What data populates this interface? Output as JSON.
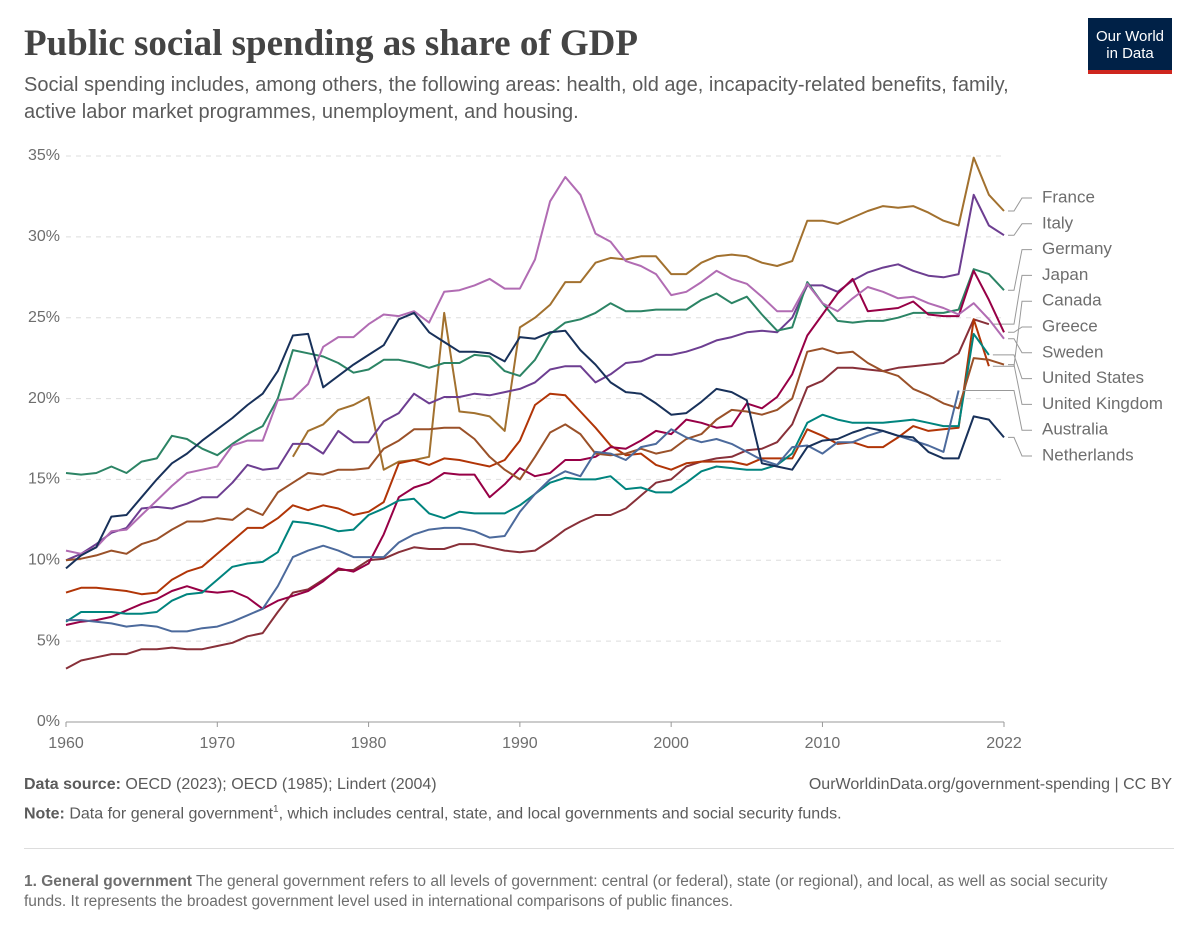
{
  "chart_data": {
    "type": "line",
    "title": "Public social spending as share of GDP",
    "subtitle": "Social spending includes, among others, the following areas: health, old age, incapacity-related benefits, family, active labor market programmes, unemployment, and housing.",
    "logo": [
      "Our World",
      "in Data"
    ],
    "source_label": "Data source:",
    "source_text": "OECD (2023); OECD (1985); Lindert (2004)",
    "url": "OurWorldinData.org/government-spending | CC BY",
    "note_label": "Note:",
    "note_text": "Data for general government",
    "note_sup": "1",
    "note_rest": ", which includes central, state, and local governments and social security funds.",
    "footnote_label": "1. General government",
    "footnote_text": "The general government refers to all levels of government: central (or federal), state (or regional), and local, as well as social security funds. It represents the broadest government level used in international comparisons of public finances.",
    "x": [
      1960,
      1961,
      1962,
      1963,
      1964,
      1965,
      1966,
      1967,
      1968,
      1969,
      1970,
      1971,
      1972,
      1973,
      1974,
      1975,
      1976,
      1977,
      1978,
      1979,
      1980,
      1981,
      1982,
      1983,
      1984,
      1985,
      1986,
      1987,
      1988,
      1989,
      1990,
      1991,
      1992,
      1993,
      1994,
      1995,
      1996,
      1997,
      1998,
      1999,
      2000,
      2001,
      2002,
      2003,
      2004,
      2005,
      2006,
      2007,
      2008,
      2009,
      2010,
      2011,
      2012,
      2013,
      2014,
      2015,
      2016,
      2017,
      2018,
      2019,
      2020,
      2021,
      2022
    ],
    "xlim": [
      1960,
      2022
    ],
    "xticks": [
      1960,
      1970,
      1980,
      1990,
      2000,
      2010,
      2022
    ],
    "ylim": [
      0,
      35
    ],
    "yticks": [
      {
        "value": 0,
        "label": "0%"
      },
      {
        "value": 5,
        "label": "5%"
      },
      {
        "value": 10,
        "label": "10%"
      },
      {
        "value": 15,
        "label": "15%"
      },
      {
        "value": 20,
        "label": "20%"
      },
      {
        "value": 25,
        "label": "25%"
      },
      {
        "value": 30,
        "label": "30%"
      },
      {
        "value": 35,
        "label": "35%"
      }
    ],
    "grid": true,
    "series": [
      {
        "name": "France",
        "color": "#a2712f",
        "values": [
          null,
          null,
          null,
          null,
          null,
          null,
          null,
          null,
          null,
          null,
          null,
          null,
          null,
          null,
          null,
          16.4,
          18.0,
          18.4,
          19.3,
          19.6,
          20.1,
          15.6,
          16.1,
          16.2,
          16.4,
          25.3,
          19.2,
          19.1,
          18.9,
          18.0,
          24.4,
          25.0,
          25.8,
          27.2,
          27.2,
          28.4,
          28.7,
          28.6,
          28.8,
          28.8,
          27.7,
          27.7,
          28.4,
          28.8,
          28.9,
          28.8,
          28.4,
          28.2,
          28.5,
          31.0,
          31.0,
          30.8,
          31.2,
          31.6,
          31.9,
          31.8,
          31.9,
          31.5,
          31.0,
          30.7,
          34.9,
          32.6,
          31.6
        ]
      },
      {
        "name": "Italy",
        "color": "#6d3e91",
        "values": [
          10.0,
          10.4,
          11.0,
          11.7,
          12.0,
          13.2,
          13.3,
          13.2,
          13.5,
          13.9,
          13.9,
          14.8,
          15.9,
          15.6,
          15.7,
          17.2,
          17.2,
          16.6,
          18.0,
          17.3,
          17.3,
          18.6,
          19.1,
          20.3,
          19.7,
          20.1,
          20.1,
          20.3,
          20.2,
          20.4,
          20.6,
          21.0,
          21.8,
          22.0,
          22.0,
          21.0,
          21.5,
          22.2,
          22.3,
          22.7,
          22.7,
          22.9,
          23.2,
          23.6,
          23.8,
          24.1,
          24.2,
          24.1,
          25.0,
          27.0,
          27.0,
          26.6,
          27.3,
          27.8,
          28.1,
          28.3,
          27.9,
          27.6,
          27.5,
          27.7,
          32.6,
          30.7,
          30.1
        ]
      },
      {
        "name": "Germany",
        "color": "#2c8465",
        "values": [
          15.4,
          15.3,
          15.4,
          15.8,
          15.4,
          16.1,
          16.3,
          17.7,
          17.5,
          16.9,
          16.5,
          17.2,
          17.8,
          18.3,
          20.0,
          23.0,
          22.8,
          22.6,
          22.2,
          21.6,
          21.8,
          22.4,
          22.4,
          22.2,
          21.9,
          22.2,
          22.2,
          22.7,
          22.6,
          21.7,
          21.4,
          22.4,
          24.0,
          24.7,
          24.9,
          25.3,
          25.9,
          25.4,
          25.4,
          25.5,
          25.5,
          25.5,
          26.1,
          26.5,
          25.9,
          26.3,
          25.2,
          24.2,
          24.4,
          27.2,
          25.9,
          24.8,
          24.7,
          24.8,
          24.8,
          25.0,
          25.3,
          25.3,
          25.3,
          25.5,
          28.0,
          27.7,
          26.7
        ]
      },
      {
        "name": "Japan",
        "color": "#883039",
        "values": [
          3.3,
          3.8,
          4.0,
          4.2,
          4.2,
          4.5,
          4.5,
          4.6,
          4.5,
          4.5,
          4.7,
          4.9,
          5.3,
          5.5,
          6.8,
          8.0,
          8.2,
          8.8,
          9.4,
          9.4,
          10.0,
          10.1,
          10.5,
          10.8,
          10.7,
          10.7,
          11.0,
          11.0,
          10.8,
          10.6,
          10.5,
          10.6,
          11.2,
          11.9,
          12.4,
          12.8,
          12.8,
          13.2,
          14.0,
          14.8,
          15.0,
          15.8,
          16.1,
          16.3,
          16.4,
          16.8,
          16.9,
          17.3,
          18.4,
          20.7,
          21.1,
          21.9,
          21.9,
          21.8,
          21.7,
          21.9,
          22.0,
          22.1,
          22.2,
          22.8,
          24.9,
          24.6,
          null
        ]
      },
      {
        "name": "Canada",
        "color": "#b13507",
        "values": [
          8.0,
          8.3,
          8.3,
          8.2,
          8.1,
          7.9,
          8.0,
          8.8,
          9.3,
          9.6,
          10.4,
          11.2,
          12.0,
          12.0,
          12.6,
          13.4,
          13.1,
          13.4,
          13.2,
          12.8,
          13.0,
          13.6,
          16.0,
          16.2,
          15.9,
          16.3,
          16.2,
          16.0,
          15.8,
          16.2,
          17.4,
          19.6,
          20.3,
          20.2,
          19.2,
          18.2,
          17.1,
          16.5,
          16.6,
          15.9,
          15.6,
          16.0,
          16.1,
          16.1,
          16.1,
          15.9,
          16.3,
          16.3,
          16.3,
          18.1,
          17.7,
          17.2,
          17.3,
          17.0,
          17.0,
          17.6,
          18.3,
          18.0,
          18.1,
          18.2,
          24.9,
          22.0,
          null
        ]
      },
      {
        "name": "Greece",
        "color": "#970046",
        "values": [
          6.0,
          6.2,
          6.3,
          6.5,
          6.9,
          7.3,
          7.6,
          8.1,
          8.4,
          8.1,
          8.0,
          8.1,
          7.7,
          7.0,
          7.5,
          7.8,
          8.1,
          8.7,
          9.5,
          9.3,
          9.8,
          11.6,
          13.9,
          14.5,
          14.8,
          15.4,
          15.3,
          15.3,
          13.9,
          14.7,
          15.7,
          15.2,
          15.4,
          16.2,
          16.2,
          16.4,
          17.0,
          16.9,
          17.4,
          18.0,
          17.8,
          18.7,
          18.5,
          18.2,
          18.3,
          19.7,
          19.4,
          20.1,
          21.5,
          23.9,
          25.2,
          26.5,
          27.4,
          25.4,
          25.5,
          25.6,
          26.0,
          25.2,
          25.1,
          25.1,
          27.9,
          26.1,
          24.1
        ]
      },
      {
        "name": "Sweden",
        "color": "#b16cb3",
        "values": [
          10.6,
          10.4,
          10.8,
          11.8,
          11.9,
          12.8,
          13.7,
          14.6,
          15.4,
          15.6,
          15.8,
          17.1,
          17.4,
          17.4,
          19.9,
          20.0,
          20.9,
          23.2,
          23.8,
          23.8,
          24.6,
          25.2,
          25.1,
          25.4,
          24.7,
          26.6,
          26.7,
          27.0,
          27.4,
          26.8,
          26.8,
          28.6,
          32.2,
          33.7,
          32.6,
          30.2,
          29.7,
          28.5,
          28.2,
          27.7,
          26.4,
          26.6,
          27.2,
          27.9,
          27.4,
          27.1,
          26.3,
          25.4,
          25.4,
          27.1,
          25.9,
          25.4,
          26.2,
          26.9,
          26.6,
          26.2,
          26.3,
          25.9,
          25.6,
          25.2,
          25.9,
          24.9,
          23.7
        ]
      },
      {
        "name": "United States",
        "color": "#00847e",
        "values": [
          6.2,
          6.8,
          6.8,
          6.8,
          6.7,
          6.7,
          6.8,
          7.5,
          7.9,
          8.0,
          8.8,
          9.6,
          9.8,
          9.9,
          10.5,
          12.4,
          12.3,
          12.1,
          11.8,
          11.9,
          12.8,
          13.2,
          13.7,
          13.8,
          12.9,
          12.6,
          13.0,
          12.9,
          12.9,
          12.9,
          13.4,
          14.1,
          14.8,
          15.1,
          15.0,
          15.0,
          15.2,
          14.4,
          14.5,
          14.2,
          14.2,
          14.8,
          15.5,
          15.8,
          15.7,
          15.6,
          15.6,
          15.9,
          16.6,
          18.5,
          19.0,
          18.7,
          18.5,
          18.5,
          18.5,
          18.6,
          18.7,
          18.5,
          18.3,
          18.3,
          24.0,
          22.7,
          null
        ]
      },
      {
        "name": "United Kingdom",
        "color": "#9a5129",
        "values": [
          10.0,
          10.1,
          10.3,
          10.6,
          10.4,
          11.0,
          11.3,
          11.9,
          12.4,
          12.4,
          12.6,
          12.5,
          13.2,
          12.8,
          14.2,
          14.8,
          15.4,
          15.3,
          15.6,
          15.6,
          15.7,
          16.9,
          17.4,
          18.1,
          18.1,
          18.2,
          18.2,
          17.5,
          16.4,
          15.6,
          15.0,
          16.4,
          17.9,
          18.4,
          17.8,
          16.6,
          16.5,
          16.6,
          16.9,
          16.6,
          16.8,
          17.5,
          17.8,
          18.7,
          19.3,
          19.2,
          19.0,
          19.3,
          20.0,
          22.9,
          23.1,
          22.8,
          22.9,
          22.2,
          21.7,
          21.4,
          20.6,
          20.2,
          19.7,
          19.4,
          22.5,
          22.4,
          22.1
        ]
      },
      {
        "name": "Australia",
        "color": "#4c6a9c",
        "values": [
          6.3,
          6.3,
          6.2,
          6.1,
          5.9,
          6.0,
          5.9,
          5.6,
          5.6,
          5.8,
          5.9,
          6.2,
          6.6,
          7.0,
          8.4,
          10.2,
          10.6,
          10.9,
          10.6,
          10.2,
          10.2,
          10.2,
          11.1,
          11.6,
          11.9,
          12.0,
          12.0,
          11.8,
          11.4,
          11.5,
          13.0,
          14.1,
          15.0,
          15.5,
          15.2,
          16.7,
          16.6,
          16.2,
          17.0,
          17.2,
          18.1,
          17.6,
          17.3,
          17.5,
          17.2,
          16.7,
          16.2,
          15.9,
          17.0,
          17.1,
          16.6,
          17.3,
          17.3,
          17.7,
          18.0,
          17.7,
          17.4,
          17.1,
          16.7,
          20.5,
          null,
          null,
          null
        ]
      },
      {
        "name": "Netherlands",
        "color": "#18315a",
        "values": [
          9.5,
          10.3,
          10.8,
          12.7,
          12.8,
          13.9,
          15.0,
          16.0,
          16.6,
          17.4,
          18.1,
          18.8,
          19.6,
          20.3,
          21.7,
          23.9,
          24.0,
          20.7,
          21.4,
          22.1,
          22.7,
          23.3,
          24.9,
          25.3,
          24.1,
          23.5,
          22.9,
          22.9,
          22.8,
          22.3,
          23.8,
          23.7,
          24.1,
          24.2,
          23.0,
          22.1,
          21.0,
          20.4,
          20.3,
          19.7,
          19.0,
          19.1,
          19.8,
          20.6,
          20.4,
          19.9,
          16.0,
          15.8,
          15.6,
          17.0,
          17.4,
          17.5,
          17.9,
          18.2,
          18.0,
          17.7,
          17.6,
          16.7,
          16.3,
          16.3,
          18.9,
          18.7,
          17.6
        ]
      }
    ]
  }
}
